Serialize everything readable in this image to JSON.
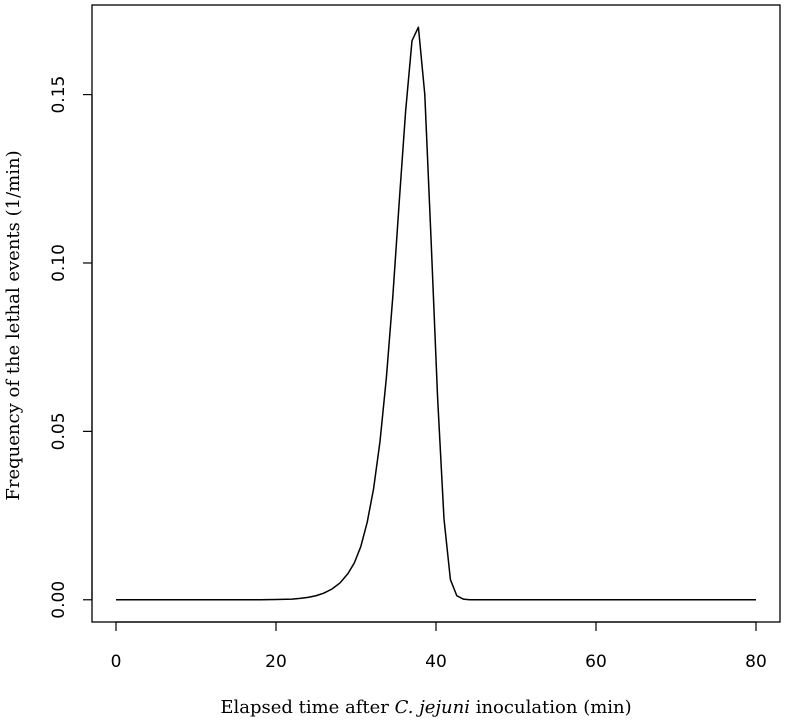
{
  "chart_data": {
    "type": "line",
    "title": "",
    "xlabel_parts": [
      {
        "text": "Elapsed time after ",
        "italic": false
      },
      {
        "text": "C. jejuni",
        "italic": true
      },
      {
        "text": " inoculation (min)",
        "italic": false
      }
    ],
    "ylabel": "Frequency of the lethal events (1/min)",
    "xlim": [
      -3,
      83
    ],
    "ylim": [
      -0.0066,
      0.1766
    ],
    "x_ticks": [
      0,
      20,
      40,
      60,
      80
    ],
    "x_tick_labels": [
      "0",
      "20",
      "40",
      "60",
      "80"
    ],
    "y_ticks": [
      0,
      0.05,
      0.1,
      0.15
    ],
    "y_tick_labels": [
      "0.00",
      "0.05",
      "0.10",
      "0.15"
    ],
    "grid": false,
    "line_color": "#000000",
    "series": [
      {
        "x": [
          0,
          18,
          20,
          22,
          23,
          24,
          25,
          26,
          27,
          28,
          29,
          29.8,
          30.6,
          31.4,
          32.2,
          33.0,
          33.8,
          34.6,
          35.4,
          36.2,
          37.0,
          37.8,
          38.6,
          39.4,
          40.2,
          41.0,
          41.8,
          42.6,
          43.4,
          44.2,
          46,
          60,
          80
        ],
        "y": [
          0,
          0,
          0.0001,
          0.0002,
          0.0004,
          0.0007,
          0.0012,
          0.002,
          0.0032,
          0.005,
          0.0078,
          0.011,
          0.0158,
          0.023,
          0.033,
          0.047,
          0.066,
          0.09,
          0.118,
          0.145,
          0.166,
          0.17,
          0.15,
          0.106,
          0.06,
          0.024,
          0.006,
          0.0012,
          0.0002,
          0,
          0,
          0,
          0
        ]
      }
    ]
  }
}
